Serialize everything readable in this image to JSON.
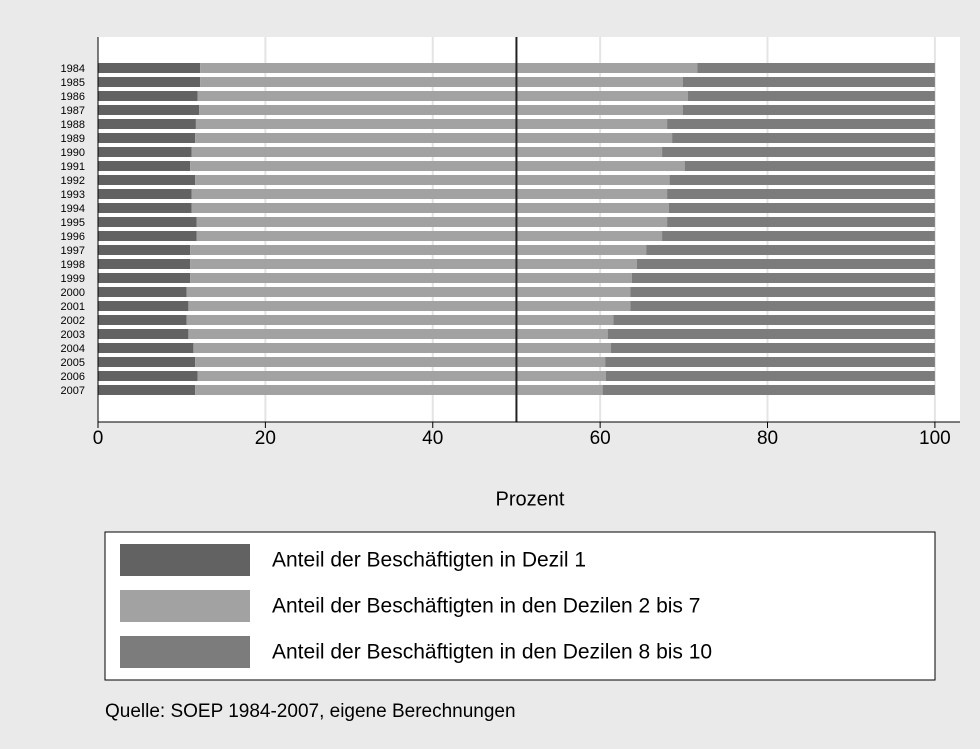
{
  "chart_data": {
    "type": "stacked-barh",
    "categories": [
      "1984",
      "1985",
      "1986",
      "1987",
      "1988",
      "1989",
      "1990",
      "1991",
      "1992",
      "1993",
      "1994",
      "1995",
      "1996",
      "1997",
      "1998",
      "1999",
      "2000",
      "2001",
      "2002",
      "2003",
      "2004",
      "2005",
      "2006",
      "2007"
    ],
    "series": [
      {
        "name": "Anteil der Beschäftigten in Dezil 1",
        "color": "#626262",
        "values": [
          12.2,
          12.2,
          11.9,
          12.1,
          11.7,
          11.6,
          11.2,
          11.0,
          11.6,
          11.2,
          11.2,
          11.8,
          11.8,
          11.0,
          11.0,
          11.0,
          10.6,
          10.8,
          10.6,
          10.8,
          11.4,
          11.6,
          11.9,
          11.6
        ]
      },
      {
        "name": "Anteil der Beschäftigten in den Dezilen 2 bis 7",
        "color": "#a2a2a2",
        "values": [
          59.4,
          57.7,
          58.6,
          57.8,
          56.3,
          57.0,
          56.2,
          59.1,
          56.7,
          56.8,
          57.0,
          56.2,
          55.6,
          54.5,
          53.4,
          52.8,
          53.0,
          52.8,
          51.0,
          50.1,
          49.9,
          49.0,
          48.8,
          48.7
        ]
      },
      {
        "name": "Anteil der Beschäftigten in den Dezilen 8 bis 10",
        "color": "#7c7c7c",
        "values": [
          28.4,
          30.1,
          29.5,
          30.1,
          32.0,
          31.4,
          32.6,
          29.9,
          31.7,
          32.0,
          31.8,
          32.0,
          32.6,
          34.5,
          35.6,
          36.2,
          36.4,
          36.4,
          38.4,
          39.1,
          38.7,
          39.4,
          39.3,
          39.7
        ]
      }
    ],
    "x_label": "Prozent",
    "xlim": [
      0,
      103
    ],
    "xticks": [
      0,
      20,
      40,
      60,
      80,
      100
    ],
    "reference_line": 50,
    "grid": true,
    "note": "Quelle: SOEP 1984-2007, eigene Berechnungen"
  }
}
